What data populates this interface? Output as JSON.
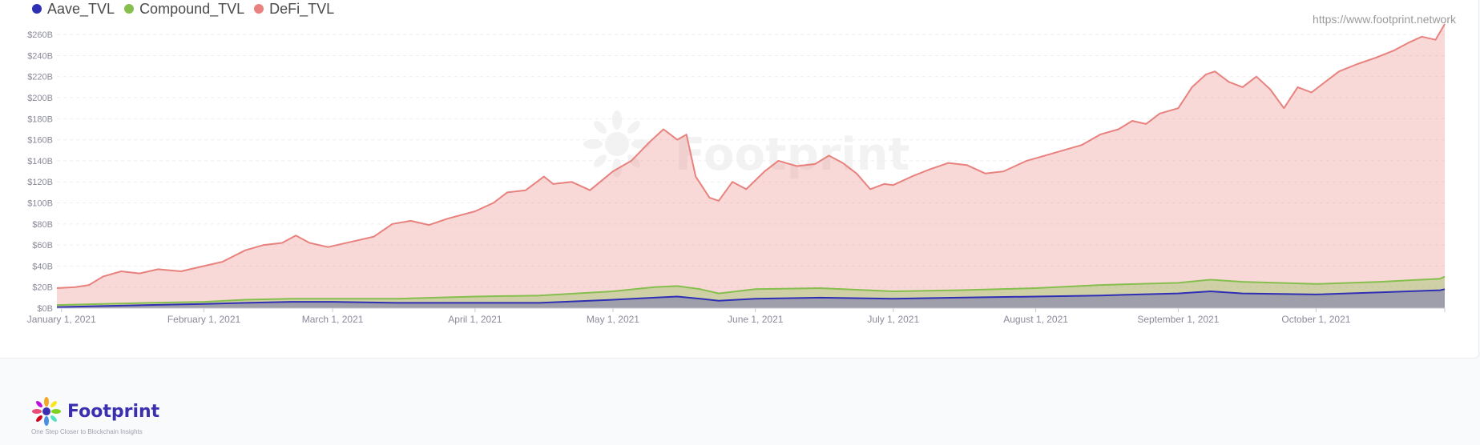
{
  "watermark_url": "https://www.footprint.network",
  "watermark_brand": "Footprint",
  "footer": {
    "brand": "Footprint",
    "tagline": "One Step Closer to Blockchain Insights"
  },
  "colors": {
    "aave": "#2f2fb5",
    "compound": "#86bf4d",
    "defi": "#e8827e"
  },
  "chart_data": {
    "type": "area",
    "title": "",
    "xlabel": "",
    "ylabel": "",
    "legend_position": "top-left",
    "grid": true,
    "ylim": [
      0,
      270
    ],
    "x_range": [
      "2020-12-31",
      "2021-10-29"
    ],
    "y_ticks": [
      0,
      20,
      40,
      60,
      80,
      100,
      120,
      140,
      160,
      180,
      200,
      220,
      240,
      260
    ],
    "y_tick_labels": [
      "$0B",
      "$20B",
      "$40B",
      "$60B",
      "$80B",
      "$100B",
      "$120B",
      "$140B",
      "$160B",
      "$180B",
      "$200B",
      "$220B",
      "$240B",
      "$260B"
    ],
    "x_ticks": [
      {
        "label": "January 1, 2021",
        "date": "2021-01-01"
      },
      {
        "label": "February 1, 2021",
        "date": "2021-02-01"
      },
      {
        "label": "March 1, 2021",
        "date": "2021-03-01"
      },
      {
        "label": "April 1, 2021",
        "date": "2021-04-01"
      },
      {
        "label": "May 1, 2021",
        "date": "2021-05-01"
      },
      {
        "label": "June 1, 2021",
        "date": "2021-06-01"
      },
      {
        "label": "July 1, 2021",
        "date": "2021-07-01"
      },
      {
        "label": "August 1, 2021",
        "date": "2021-08-01"
      },
      {
        "label": "September 1, 2021",
        "date": "2021-09-01"
      },
      {
        "label": "October 1, 2021",
        "date": "2021-10-01"
      }
    ],
    "series": [
      {
        "name": "Aave_TVL",
        "color": "#2f2fb5",
        "points": [
          [
            "2020-12-31",
            1
          ],
          [
            "2021-01-10",
            2
          ],
          [
            "2021-01-20",
            3
          ],
          [
            "2021-02-01",
            4
          ],
          [
            "2021-02-10",
            5
          ],
          [
            "2021-02-20",
            6
          ],
          [
            "2021-03-01",
            6
          ],
          [
            "2021-03-15",
            5
          ],
          [
            "2021-04-01",
            5
          ],
          [
            "2021-04-15",
            5
          ],
          [
            "2021-05-01",
            8
          ],
          [
            "2021-05-10",
            10
          ],
          [
            "2021-05-15",
            11
          ],
          [
            "2021-05-20",
            9
          ],
          [
            "2021-05-24",
            7
          ],
          [
            "2021-06-01",
            9
          ],
          [
            "2021-06-15",
            10
          ],
          [
            "2021-07-01",
            9
          ],
          [
            "2021-07-15",
            10
          ],
          [
            "2021-08-01",
            11
          ],
          [
            "2021-08-15",
            12
          ],
          [
            "2021-09-01",
            14
          ],
          [
            "2021-09-08",
            16
          ],
          [
            "2021-09-15",
            14
          ],
          [
            "2021-10-01",
            13
          ],
          [
            "2021-10-15",
            15
          ],
          [
            "2021-10-28",
            17
          ],
          [
            "2021-10-29",
            18
          ]
        ]
      },
      {
        "name": "Compound_TVL",
        "color": "#86bf4d",
        "points": [
          [
            "2020-12-31",
            3
          ],
          [
            "2021-01-10",
            4
          ],
          [
            "2021-01-20",
            5
          ],
          [
            "2021-02-01",
            6
          ],
          [
            "2021-02-10",
            8
          ],
          [
            "2021-02-20",
            9
          ],
          [
            "2021-03-01",
            9
          ],
          [
            "2021-03-15",
            9
          ],
          [
            "2021-04-01",
            11
          ],
          [
            "2021-04-15",
            12
          ],
          [
            "2021-05-01",
            16
          ],
          [
            "2021-05-10",
            20
          ],
          [
            "2021-05-15",
            21
          ],
          [
            "2021-05-20",
            18
          ],
          [
            "2021-05-24",
            14
          ],
          [
            "2021-06-01",
            18
          ],
          [
            "2021-06-15",
            19
          ],
          [
            "2021-07-01",
            16
          ],
          [
            "2021-07-15",
            17
          ],
          [
            "2021-08-01",
            19
          ],
          [
            "2021-08-15",
            22
          ],
          [
            "2021-09-01",
            24
          ],
          [
            "2021-09-08",
            27
          ],
          [
            "2021-09-15",
            25
          ],
          [
            "2021-10-01",
            23
          ],
          [
            "2021-10-15",
            25
          ],
          [
            "2021-10-28",
            28
          ],
          [
            "2021-10-29",
            30
          ]
        ]
      },
      {
        "name": "DeFi_TVL",
        "color": "#e8827e",
        "points": [
          [
            "2020-12-31",
            19
          ],
          [
            "2021-01-04",
            20
          ],
          [
            "2021-01-07",
            22
          ],
          [
            "2021-01-10",
            30
          ],
          [
            "2021-01-14",
            35
          ],
          [
            "2021-01-18",
            33
          ],
          [
            "2021-01-22",
            37
          ],
          [
            "2021-01-27",
            35
          ],
          [
            "2021-02-01",
            40
          ],
          [
            "2021-02-05",
            44
          ],
          [
            "2021-02-10",
            55
          ],
          [
            "2021-02-14",
            60
          ],
          [
            "2021-02-18",
            62
          ],
          [
            "2021-02-21",
            69
          ],
          [
            "2021-02-24",
            62
          ],
          [
            "2021-02-28",
            58
          ],
          [
            "2021-03-05",
            63
          ],
          [
            "2021-03-10",
            68
          ],
          [
            "2021-03-14",
            80
          ],
          [
            "2021-03-18",
            83
          ],
          [
            "2021-03-22",
            79
          ],
          [
            "2021-03-26",
            85
          ],
          [
            "2021-04-01",
            92
          ],
          [
            "2021-04-05",
            100
          ],
          [
            "2021-04-08",
            110
          ],
          [
            "2021-04-12",
            112
          ],
          [
            "2021-04-16",
            125
          ],
          [
            "2021-04-18",
            118
          ],
          [
            "2021-04-22",
            120
          ],
          [
            "2021-04-26",
            112
          ],
          [
            "2021-05-01",
            130
          ],
          [
            "2021-05-05",
            140
          ],
          [
            "2021-05-09",
            158
          ],
          [
            "2021-05-12",
            170
          ],
          [
            "2021-05-15",
            160
          ],
          [
            "2021-05-17",
            165
          ],
          [
            "2021-05-19",
            125
          ],
          [
            "2021-05-22",
            105
          ],
          [
            "2021-05-24",
            102
          ],
          [
            "2021-05-27",
            120
          ],
          [
            "2021-05-30",
            113
          ],
          [
            "2021-06-03",
            130
          ],
          [
            "2021-06-06",
            140
          ],
          [
            "2021-06-10",
            135
          ],
          [
            "2021-06-14",
            137
          ],
          [
            "2021-06-17",
            145
          ],
          [
            "2021-06-20",
            138
          ],
          [
            "2021-06-23",
            128
          ],
          [
            "2021-06-26",
            113
          ],
          [
            "2021-06-29",
            118
          ],
          [
            "2021-07-01",
            117
          ],
          [
            "2021-07-05",
            125
          ],
          [
            "2021-07-09",
            132
          ],
          [
            "2021-07-13",
            138
          ],
          [
            "2021-07-17",
            136
          ],
          [
            "2021-07-21",
            128
          ],
          [
            "2021-07-25",
            130
          ],
          [
            "2021-07-30",
            140
          ],
          [
            "2021-08-03",
            145
          ],
          [
            "2021-08-07",
            150
          ],
          [
            "2021-08-11",
            155
          ],
          [
            "2021-08-15",
            165
          ],
          [
            "2021-08-19",
            170
          ],
          [
            "2021-08-22",
            178
          ],
          [
            "2021-08-25",
            175
          ],
          [
            "2021-08-28",
            185
          ],
          [
            "2021-09-01",
            190
          ],
          [
            "2021-09-04",
            210
          ],
          [
            "2021-09-07",
            222
          ],
          [
            "2021-09-09",
            225
          ],
          [
            "2021-09-12",
            215
          ],
          [
            "2021-09-15",
            210
          ],
          [
            "2021-09-18",
            220
          ],
          [
            "2021-09-21",
            208
          ],
          [
            "2021-09-24",
            190
          ],
          [
            "2021-09-27",
            210
          ],
          [
            "2021-09-30",
            205
          ],
          [
            "2021-10-03",
            215
          ],
          [
            "2021-10-06",
            225
          ],
          [
            "2021-10-10",
            232
          ],
          [
            "2021-10-14",
            238
          ],
          [
            "2021-10-18",
            245
          ],
          [
            "2021-10-21",
            252
          ],
          [
            "2021-10-24",
            258
          ],
          [
            "2021-10-27",
            255
          ],
          [
            "2021-10-29",
            270
          ]
        ]
      }
    ]
  }
}
